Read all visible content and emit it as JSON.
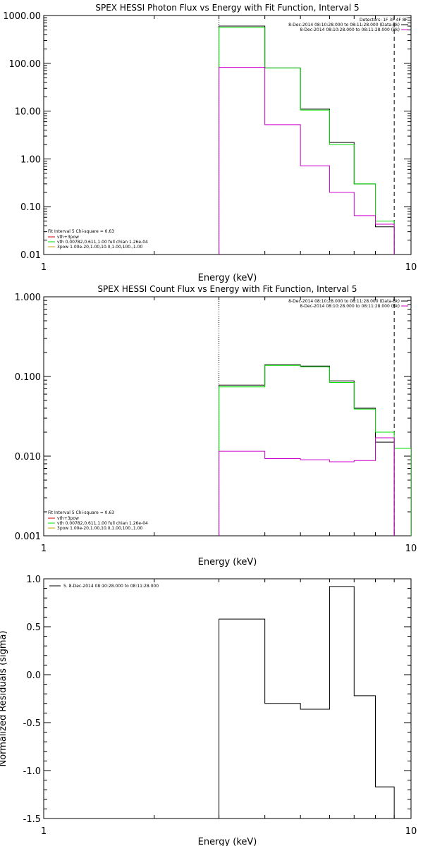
{
  "colors": {
    "black": "#000000",
    "green": "#00dd00",
    "magenta": "#cc00cc",
    "olive": "#c8a000",
    "red": "#cc0000"
  },
  "chart_data": [
    {
      "type": "line",
      "title": "SPEX HESSI Photon Flux vs Energy with Fit Function, Interval 5",
      "xlabel": "Energy (keV)",
      "ylabel": "",
      "xscale": "log",
      "yscale": "log",
      "xlim": [
        1,
        10
      ],
      "ylim": [
        0.01,
        1000
      ],
      "xticks": [
        "1",
        "10"
      ],
      "yticks": [
        "1000.00",
        "100.00",
        "10.00",
        "1.00",
        "0.10",
        "0.01"
      ],
      "ytick_values": [
        1000,
        100,
        10,
        1,
        0.1,
        0.01
      ],
      "bin_edges": [
        3,
        4,
        5,
        6,
        7,
        8,
        9
      ],
      "series": [
        {
          "color": "black",
          "values": [
            600,
            80,
            11,
            2.2,
            0.3,
            0.038
          ]
        },
        {
          "color": "green",
          "values": [
            560,
            80,
            10.5,
            2.0,
            0.3,
            0.05
          ]
        },
        {
          "color": "magenta",
          "values": [
            82,
            5.2,
            0.72,
            0.2,
            0.065,
            0.043
          ]
        }
      ],
      "vlines": [
        {
          "x": 3,
          "style": "dotted"
        },
        {
          "x": 9,
          "style": "dashed"
        }
      ],
      "legend_top": {
        "header": "Detectors: 1F 3F 4F 8F",
        "entries": [
          {
            "text": "8-Dec-2014 08:10:28.000 to 08:11:28.000 (Data-Bk)",
            "color": "black"
          },
          {
            "text": "8-Dec-2014 08:10:28.000 to 08:11:28.000 (Bk)",
            "color": "magenta"
          }
        ]
      },
      "legend_bottom": {
        "header": "Fit Interval 5   Chi-square = 0.63",
        "entries": [
          {
            "text": "vth+3pow",
            "color": "red"
          },
          {
            "text": "vth 0.00782,0.611,1.00   full chian 1.26e-04",
            "color": "green"
          },
          {
            "text": "3pow 1.00e-20,1.00,10.0,1.00,100.,1.00",
            "color": "olive"
          }
        ]
      }
    },
    {
      "type": "line",
      "title": "SPEX HESSI Count Flux vs Energy with Fit Function, Interval 5",
      "xlabel": "Energy (keV)",
      "ylabel": "",
      "xscale": "log",
      "yscale": "log",
      "xlim": [
        1,
        10
      ],
      "ylim": [
        0.001,
        1
      ],
      "xticks": [
        "1",
        "10"
      ],
      "yticks": [
        "1.000",
        "0.100",
        "0.010",
        "0.001"
      ],
      "ytick_values": [
        1,
        0.1,
        0.01,
        0.001
      ],
      "bin_edges": [
        3,
        4,
        5,
        6,
        7,
        8,
        9,
        10
      ],
      "series": [
        {
          "color": "black",
          "values": [
            0.078,
            0.14,
            0.135,
            0.088,
            0.04,
            0.015
          ]
        },
        {
          "color": "green",
          "values": [
            0.074,
            0.138,
            0.132,
            0.084,
            0.039,
            0.02,
            0.0125
          ]
        },
        {
          "color": "magenta",
          "values": [
            0.0115,
            0.0093,
            0.009,
            0.0085,
            0.0088,
            0.017
          ]
        }
      ],
      "vlines": [
        {
          "x": 3,
          "style": "dotted"
        },
        {
          "x": 9,
          "style": "dashed"
        }
      ],
      "legend_top": {
        "header": "",
        "entries": [
          {
            "text": "8-Dec-2014 08:10:28.000 to 08:11:28.000 (Data-Bk)",
            "color": "black"
          },
          {
            "text": "8-Dec-2014 08:10:28.000 to 08:11:28.000 (Bk)",
            "color": "magenta"
          }
        ]
      },
      "legend_bottom": {
        "header": "Fit Interval 5   Chi-square = 0.63",
        "entries": [
          {
            "text": "vth+3pow",
            "color": "red"
          },
          {
            "text": "vth 0.00782,0.611,1.00   full chian 1.26e-04",
            "color": "green"
          },
          {
            "text": "3pow 1.00e-20,1.00,10.0,1.00,100.,1.00",
            "color": "olive"
          }
        ]
      }
    },
    {
      "type": "line",
      "title": "",
      "xlabel": "Energy (keV)",
      "ylabel": "Normalized Residuals (sigma)",
      "xscale": "log",
      "yscale": "linear",
      "xlim": [
        1,
        10
      ],
      "ylim": [
        -1.5,
        1.0
      ],
      "xticks": [
        "1",
        "10"
      ],
      "yticks": [
        "1.0",
        "0.5",
        "0.0",
        "-0.5",
        "-1.0",
        "-1.5"
      ],
      "ytick_values": [
        1.0,
        0.5,
        0.0,
        -0.5,
        -1.0,
        -1.5
      ],
      "bin_edges": [
        3,
        4,
        5,
        6,
        7,
        8,
        9
      ],
      "series": [
        {
          "color": "black",
          "values": [
            0.58,
            -0.3,
            -0.36,
            0.92,
            -0.22,
            -1.17
          ]
        }
      ],
      "vlines": [],
      "legend_top": {
        "header": "",
        "entries": [
          {
            "text": "5.  8-Dec-2014 08:10:28.000 to 08:11:28.000",
            "color": "black"
          }
        ]
      },
      "legend_bottom": {
        "header": "",
        "entries": []
      }
    }
  ]
}
